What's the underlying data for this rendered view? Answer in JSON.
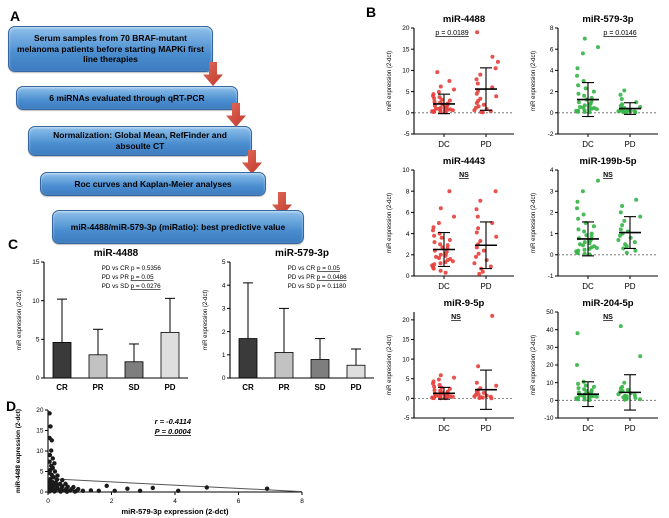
{
  "panels": {
    "A": {
      "label": "A",
      "steps": [
        "Serum samples from 70 BRAF-mutant melanoma patients before starting MAPKi first line therapies",
        "6 miRNAs evaluated through qRT-PCR",
        "Normalization: Global Mean, RefFinder and absoulte CT",
        "Roc curves and Kaplan-Meier analyses",
        "miR-4488/miR-579-3p (miRatio): best predictive value"
      ]
    },
    "B": {
      "label": "B"
    },
    "C": {
      "label": "C"
    },
    "D": {
      "label": "D"
    }
  },
  "colors": {
    "flow_box": "#4a8ed0",
    "flow_box_light": "#8fc0ea",
    "flow_arrow": "#c0392b",
    "red_series": "#e8413d",
    "green_series": "#39b54a",
    "black_series": "#1a1a1a"
  },
  "chart_data": [
    {
      "type": "jitter-scatter",
      "title": "miR-4488",
      "ylabel": "miR expression (2-dct)",
      "annotation": "p = 0.0189",
      "annotation_x": 0.38,
      "color": "#e8413d",
      "ylim": [
        -5,
        20
      ],
      "yticks": [
        -5,
        0,
        5,
        10,
        15,
        20
      ],
      "categories": [
        "DC",
        "PD"
      ],
      "groups": [
        {
          "label": "DC",
          "mean": 2.1,
          "sd": 2.3,
          "values": [
            0.1,
            0.15,
            0.2,
            0.25,
            0.3,
            0.35,
            0.4,
            0.5,
            0.55,
            0.6,
            0.7,
            0.8,
            0.9,
            1.0,
            1.1,
            1.2,
            1.3,
            1.5,
            1.7,
            1.9,
            2.0,
            2.2,
            2.4,
            2.6,
            2.9,
            3.1,
            3.4,
            3.7,
            4.0,
            4.4,
            4.9,
            5.5,
            6.2,
            7.5,
            9.6
          ]
        },
        {
          "label": "PD",
          "mean": 5.6,
          "sd": 5.0,
          "values": [
            0.1,
            0.2,
            0.4,
            0.6,
            0.9,
            1.2,
            1.5,
            1.9,
            2.3,
            2.8,
            3.3,
            3.9,
            4.5,
            5.2,
            6.0,
            6.9,
            7.9,
            9.0,
            10.5,
            12.0,
            13.2,
            19.0
          ]
        }
      ]
    },
    {
      "type": "jitter-scatter",
      "title": "miR-579-3p",
      "ylabel": "miR expression (2-dct)",
      "annotation": "p = 0.0146",
      "annotation_x": 0.62,
      "color": "#39b54a",
      "ylim": [
        -2,
        8
      ],
      "yticks": [
        -2,
        0,
        2,
        4,
        6,
        8
      ],
      "categories": [
        "DC",
        "PD"
      ],
      "groups": [
        {
          "label": "DC",
          "mean": 1.25,
          "sd": 1.6,
          "values": [
            0.05,
            0.08,
            0.1,
            0.12,
            0.15,
            0.18,
            0.2,
            0.25,
            0.3,
            0.35,
            0.4,
            0.45,
            0.5,
            0.55,
            0.6,
            0.7,
            0.8,
            0.9,
            1.0,
            1.1,
            1.25,
            1.4,
            1.6,
            1.8,
            2.0,
            2.3,
            2.6,
            3.0,
            3.5,
            4.2,
            5.6,
            6.2,
            7.0
          ]
        },
        {
          "label": "PD",
          "mean": 0.4,
          "sd": 0.55,
          "values": [
            0.03,
            0.05,
            0.07,
            0.1,
            0.12,
            0.15,
            0.18,
            0.2,
            0.25,
            0.3,
            0.35,
            0.4,
            0.45,
            0.55,
            0.65,
            0.8,
            1.0,
            1.3,
            1.7,
            2.1
          ]
        }
      ]
    },
    {
      "type": "jitter-scatter",
      "title": "miR-4443",
      "ylabel": "miR expression (2-dct)",
      "annotation": "NS",
      "annotation_x": 0.5,
      "color": "#e8413d",
      "ylim": [
        0,
        10
      ],
      "yticks": [
        0,
        2,
        4,
        6,
        8,
        10
      ],
      "categories": [
        "DC",
        "PD"
      ],
      "groups": [
        {
          "label": "DC",
          "mean": 2.5,
          "sd": 1.6,
          "values": [
            0.3,
            0.5,
            0.7,
            0.8,
            0.9,
            1.0,
            1.1,
            1.2,
            1.3,
            1.4,
            1.5,
            1.6,
            1.7,
            1.8,
            1.9,
            2.0,
            2.1,
            2.3,
            2.4,
            2.6,
            2.7,
            2.9,
            3.0,
            3.2,
            3.4,
            3.6,
            3.8,
            4.0,
            4.3,
            4.6,
            5.0,
            5.6,
            6.4,
            8.0
          ]
        },
        {
          "label": "PD",
          "mean": 2.9,
          "sd": 2.2,
          "values": [
            0.2,
            0.4,
            0.7,
            0.9,
            1.2,
            1.5,
            1.8,
            2.1,
            2.4,
            2.7,
            3.0,
            3.3,
            3.7,
            4.1,
            4.5,
            5.0,
            5.6,
            6.3,
            7.1,
            8.0
          ]
        }
      ]
    },
    {
      "type": "jitter-scatter",
      "title": "miR-199b-5p",
      "ylabel": "miR expression (2-dct)",
      "annotation": "NS",
      "annotation_x": 0.5,
      "color": "#39b54a",
      "ylim": [
        -1,
        4
      ],
      "yticks": [
        -1,
        0,
        1,
        2,
        3,
        4
      ],
      "categories": [
        "DC",
        "PD"
      ],
      "groups": [
        {
          "label": "DC",
          "mean": 0.75,
          "sd": 0.8,
          "values": [
            0.02,
            0.05,
            0.08,
            0.1,
            0.13,
            0.16,
            0.2,
            0.24,
            0.28,
            0.32,
            0.36,
            0.4,
            0.45,
            0.5,
            0.55,
            0.6,
            0.65,
            0.7,
            0.78,
            0.85,
            0.92,
            1.0,
            1.1,
            1.2,
            1.35,
            1.5,
            1.7,
            1.9,
            2.2,
            2.5,
            3.0,
            3.5
          ]
        },
        {
          "label": "PD",
          "mean": 1.05,
          "sd": 0.75,
          "values": [
            0.1,
            0.2,
            0.3,
            0.4,
            0.5,
            0.6,
            0.7,
            0.8,
            0.9,
            1.0,
            1.1,
            1.2,
            1.4,
            1.6,
            1.8,
            2.0,
            2.3,
            2.6
          ]
        }
      ]
    },
    {
      "type": "jitter-scatter",
      "title": "miR-9-5p",
      "ylabel": "miR expression (2-dct)",
      "annotation": "NS",
      "annotation_x": 0.42,
      "color": "#e8413d",
      "ylim": [
        -5,
        22
      ],
      "yticks": [
        -5,
        0,
        5,
        10,
        15,
        20
      ],
      "categories": [
        "DC",
        "PD"
      ],
      "groups": [
        {
          "label": "DC",
          "mean": 1.3,
          "sd": 1.5,
          "values": [
            0.02,
            0.05,
            0.08,
            0.1,
            0.15,
            0.2,
            0.25,
            0.3,
            0.35,
            0.4,
            0.5,
            0.55,
            0.6,
            0.7,
            0.8,
            0.9,
            1.0,
            1.1,
            1.2,
            1.4,
            1.5,
            1.7,
            1.9,
            2.1,
            2.4,
            2.7,
            3.0,
            3.4,
            3.8,
            4.3,
            4.8,
            5.3,
            5.9
          ]
        },
        {
          "label": "PD",
          "mean": 2.2,
          "sd": 5.0,
          "values": [
            0.05,
            0.1,
            0.2,
            0.3,
            0.4,
            0.5,
            0.7,
            0.9,
            1.1,
            1.4,
            1.7,
            2.1,
            2.6,
            3.2,
            4.0,
            8.2,
            21.0
          ]
        }
      ]
    },
    {
      "type": "jitter-scatter",
      "title": "miR-204-5p",
      "ylabel": "miR expression (2-dct)",
      "annotation": "NS",
      "annotation_x": 0.5,
      "color": "#39b54a",
      "ylim": [
        -10,
        50
      ],
      "yticks": [
        -10,
        0,
        10,
        20,
        30,
        40,
        50
      ],
      "categories": [
        "DC",
        "PD"
      ],
      "groups": [
        {
          "label": "DC",
          "mean": 3.5,
          "sd": 7.0,
          "values": [
            0.2,
            0.4,
            0.6,
            0.8,
            1.0,
            1.2,
            1.4,
            1.6,
            1.8,
            2.0,
            2.2,
            2.5,
            2.7,
            3.0,
            3.2,
            3.5,
            3.8,
            4.1,
            4.5,
            4.9,
            5.3,
            5.8,
            6.3,
            6.9,
            7.6,
            8.4,
            9.3,
            10.5,
            20.0,
            38.0
          ]
        },
        {
          "label": "PD",
          "mean": 4.5,
          "sd": 10.0,
          "values": [
            0.3,
            0.6,
            1.0,
            1.4,
            1.8,
            2.2,
            2.6,
            3.0,
            3.5,
            4.0,
            4.6,
            5.2,
            5.9,
            6.7,
            7.6,
            10.0,
            25.0,
            42.0
          ]
        }
      ]
    },
    {
      "type": "bar",
      "title": "miR-4488",
      "ylabel": "miR expression (2-dct)",
      "ylim": [
        0,
        15
      ],
      "yticks": [
        0,
        5,
        10,
        15
      ],
      "categories": [
        "CR",
        "PR",
        "SD",
        "PD"
      ],
      "values": [
        4.6,
        3.0,
        2.1,
        5.9
      ],
      "errors": [
        5.6,
        3.3,
        2.3,
        4.4
      ],
      "bar_colors": [
        "#3a3a3a",
        "#c2c2c2",
        "#7e7e7e",
        "#dedede"
      ],
      "annotations": [
        {
          "prefix": "PD vs CR ",
          "p": "p = 0.5356",
          "underline": false
        },
        {
          "prefix": "PD vs PR ",
          "p": "p = 0.05",
          "underline": true
        },
        {
          "prefix": "PD vs SD ",
          "p": "p = 0.0276",
          "underline": true
        }
      ]
    },
    {
      "type": "bar",
      "title": "miR-579-3p",
      "ylabel": "miR expression (2-dct)",
      "ylim": [
        0,
        5
      ],
      "yticks": [
        0,
        1,
        2,
        3,
        4,
        5
      ],
      "categories": [
        "CR",
        "PR",
        "SD",
        "PD"
      ],
      "values": [
        1.7,
        1.1,
        0.8,
        0.55
      ],
      "errors": [
        2.4,
        1.9,
        0.9,
        0.7
      ],
      "bar_colors": [
        "#3a3a3a",
        "#c2c2c2",
        "#7e7e7e",
        "#dedede"
      ],
      "annotations": [
        {
          "prefix": "PD vs CR ",
          "p": "p = 0.05",
          "underline": true
        },
        {
          "prefix": "PD vs PR ",
          "p": "p = 0.0486",
          "underline": true
        },
        {
          "prefix": "PD vs SD ",
          "p": "p = 0.1180",
          "underline": false
        }
      ]
    },
    {
      "type": "scatter",
      "xlabel": "miR-579-3p expression (2-dct)",
      "ylabel": "miR-4488 expression (2-dct)",
      "xlim": [
        0,
        8
      ],
      "ylim": [
        0,
        20
      ],
      "xticks": [
        0,
        2,
        4,
        6,
        8
      ],
      "yticks": [
        0,
        5,
        10,
        15,
        20
      ],
      "color": "#1a1a1a",
      "annotation_r": "r = -0.4114",
      "annotation_p": "P = 0.0004",
      "trend": {
        "x1": 0,
        "y1": 3.25,
        "x2": 8,
        "y2": 0.1
      },
      "points": [
        [
          0.05,
          19.2
        ],
        [
          0.08,
          16.0
        ],
        [
          0.05,
          13.2
        ],
        [
          0.12,
          12.6
        ],
        [
          0.1,
          10.1
        ],
        [
          0.06,
          9.0
        ],
        [
          0.15,
          8.2
        ],
        [
          0.05,
          7.4
        ],
        [
          0.2,
          7.0
        ],
        [
          0.1,
          6.4
        ],
        [
          0.15,
          5.9
        ],
        [
          0.08,
          5.4
        ],
        [
          0.22,
          5.0
        ],
        [
          0.05,
          4.6
        ],
        [
          0.12,
          4.2
        ],
        [
          0.3,
          4.0
        ],
        [
          0.18,
          3.6
        ],
        [
          0.08,
          3.2
        ],
        [
          0.28,
          3.0
        ],
        [
          0.45,
          2.9
        ],
        [
          0.06,
          2.6
        ],
        [
          0.15,
          2.4
        ],
        [
          0.25,
          2.2
        ],
        [
          0.38,
          2.0
        ],
        [
          0.55,
          2.0
        ],
        [
          0.08,
          1.8
        ],
        [
          0.18,
          1.6
        ],
        [
          0.3,
          1.5
        ],
        [
          0.45,
          1.4
        ],
        [
          0.62,
          1.3
        ],
        [
          0.8,
          1.2
        ],
        [
          0.05,
          1.0
        ],
        [
          0.15,
          1.0
        ],
        [
          0.28,
          0.9
        ],
        [
          0.42,
          0.85
        ],
        [
          0.58,
          0.8
        ],
        [
          0.75,
          0.75
        ],
        [
          0.95,
          0.7
        ],
        [
          0.1,
          0.5
        ],
        [
          0.22,
          0.45
        ],
        [
          0.36,
          0.4
        ],
        [
          0.52,
          0.38
        ],
        [
          0.7,
          0.35
        ],
        [
          0.9,
          0.3
        ],
        [
          1.1,
          0.3
        ],
        [
          1.35,
          0.4
        ],
        [
          1.6,
          0.3
        ],
        [
          1.85,
          1.5
        ],
        [
          2.1,
          0.3
        ],
        [
          2.5,
          0.8
        ],
        [
          2.9,
          0.3
        ],
        [
          3.3,
          1.0
        ],
        [
          4.1,
          0.3
        ],
        [
          5.0,
          1.1
        ],
        [
          6.9,
          0.8
        ],
        [
          0.05,
          0.15
        ],
        [
          0.2,
          0.12
        ],
        [
          0.4,
          0.1
        ],
        [
          0.6,
          0.08
        ],
        [
          0.85,
          0.1
        ]
      ]
    }
  ]
}
